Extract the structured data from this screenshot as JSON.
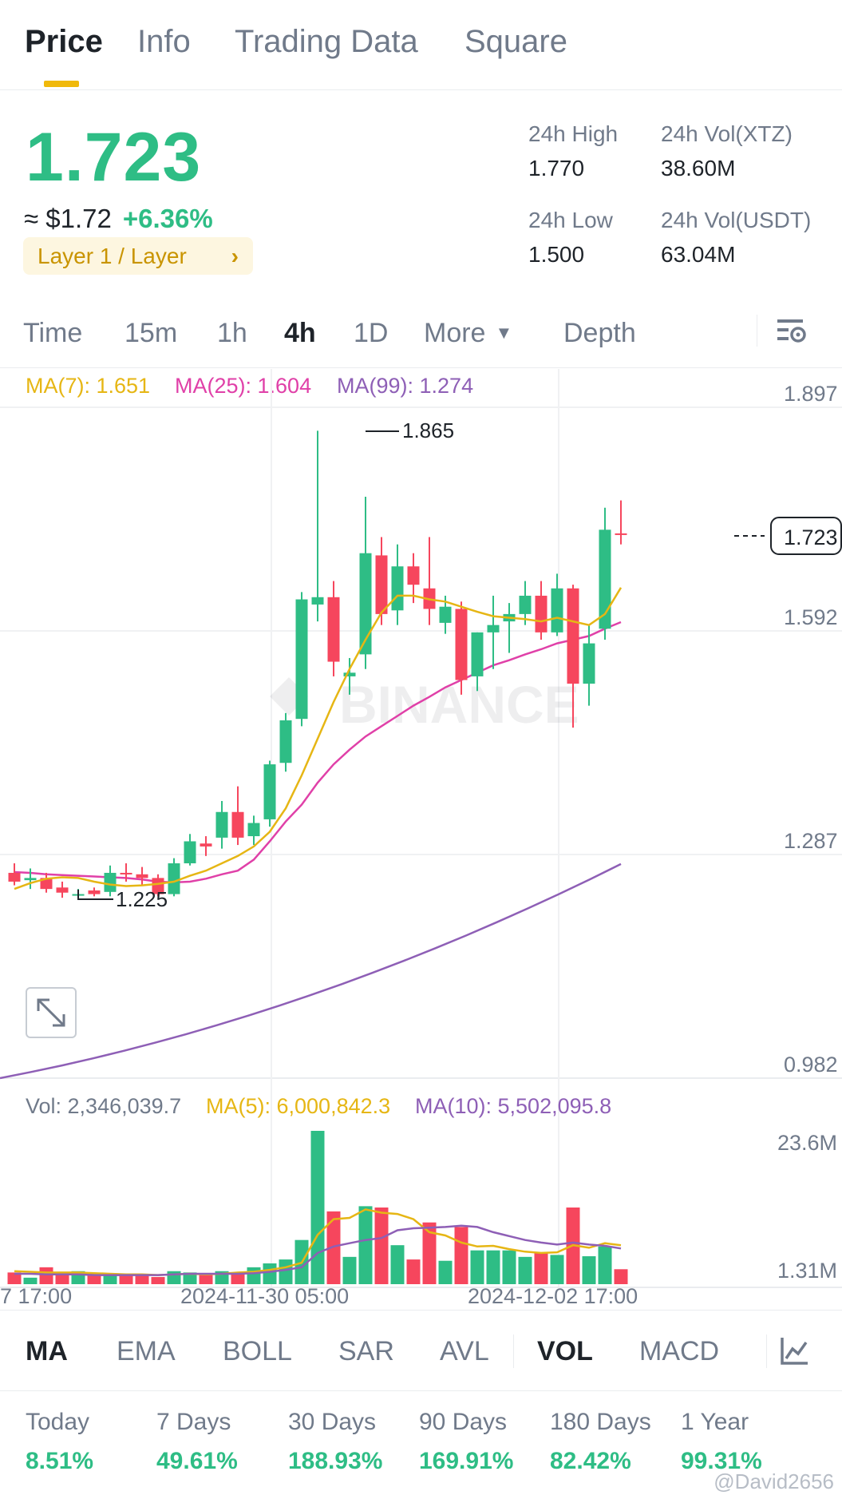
{
  "top_tabs": [
    {
      "label": "Price",
      "active": true
    },
    {
      "label": "Info"
    },
    {
      "label": "Trading Data"
    },
    {
      "label": "Square"
    }
  ],
  "price": {
    "last": "1.723",
    "approx_usd": "≈ $1.72",
    "change": "+6.36%",
    "category": "Layer 1 / Layer"
  },
  "stats": {
    "high_label": "24h High",
    "high_value": "1.770",
    "low_label": "24h Low",
    "low_value": "1.500",
    "vol_base_label": "24h Vol(XTZ)",
    "vol_base_value": "38.60M",
    "vol_quote_label": "24h Vol(USDT)",
    "vol_quote_value": "63.04M"
  },
  "timeframes": [
    "Time",
    "15m",
    "1h",
    "4h",
    "1D",
    "More",
    "Depth"
  ],
  "active_timeframe": "4h",
  "ma_legend": {
    "ma7": "MA(7): 1.651",
    "ma25": "MA(25): 1.604",
    "ma99": "MA(99): 1.274"
  },
  "vol_legend": {
    "vol": "Vol: 2,346,039.7",
    "ma5": "MA(5): 6,000,842.3",
    "ma10": "MA(10): 5,502,095.8"
  },
  "colors": {
    "up": "#2ebd85",
    "down": "#f6465d",
    "accent": "#f0b90b",
    "ma7": "#e6b614",
    "ma25": "#e040a8",
    "ma99": "#8e5fb6"
  },
  "chart_data": {
    "type": "candlestick",
    "price_axis_ticks": [
      "1.897",
      "1.592",
      "1.287",
      "0.982"
    ],
    "current_price_tag": "1.723",
    "high_marker": "1.865",
    "low_marker": "1.225",
    "volume_axis_ticks": [
      "23.6M",
      "1.31M"
    ],
    "x_tick_labels": [
      "7 17:00",
      "2024-11-30 05:00",
      "2024-12-02 17:00"
    ],
    "ylim": [
      0.982,
      1.897
    ],
    "candles": [
      {
        "o": 1.262,
        "h": 1.275,
        "l": 1.245,
        "c": 1.25
      },
      {
        "o": 1.252,
        "h": 1.268,
        "l": 1.24,
        "c": 1.255
      },
      {
        "o": 1.255,
        "h": 1.262,
        "l": 1.235,
        "c": 1.24
      },
      {
        "o": 1.242,
        "h": 1.25,
        "l": 1.228,
        "c": 1.235
      },
      {
        "o": 1.232,
        "h": 1.24,
        "l": 1.225,
        "c": 1.233
      },
      {
        "o": 1.238,
        "h": 1.242,
        "l": 1.23,
        "c": 1.233
      },
      {
        "o": 1.236,
        "h": 1.272,
        "l": 1.23,
        "c": 1.262
      },
      {
        "o": 1.262,
        "h": 1.275,
        "l": 1.25,
        "c": 1.26
      },
      {
        "o": 1.26,
        "h": 1.27,
        "l": 1.245,
        "c": 1.255
      },
      {
        "o": 1.255,
        "h": 1.26,
        "l": 1.23,
        "c": 1.233
      },
      {
        "o": 1.233,
        "h": 1.282,
        "l": 1.23,
        "c": 1.275
      },
      {
        "o": 1.275,
        "h": 1.315,
        "l": 1.272,
        "c": 1.305
      },
      {
        "o": 1.302,
        "h": 1.312,
        "l": 1.285,
        "c": 1.298
      },
      {
        "o": 1.31,
        "h": 1.36,
        "l": 1.295,
        "c": 1.345
      },
      {
        "o": 1.345,
        "h": 1.38,
        "l": 1.3,
        "c": 1.31
      },
      {
        "o": 1.312,
        "h": 1.34,
        "l": 1.3,
        "c": 1.33
      },
      {
        "o": 1.335,
        "h": 1.415,
        "l": 1.325,
        "c": 1.41
      },
      {
        "o": 1.412,
        "h": 1.48,
        "l": 1.4,
        "c": 1.47
      },
      {
        "o": 1.472,
        "h": 1.645,
        "l": 1.462,
        "c": 1.635
      },
      {
        "o": 1.628,
        "h": 1.865,
        "l": 1.605,
        "c": 1.638
      },
      {
        "o": 1.638,
        "h": 1.66,
        "l": 1.53,
        "c": 1.55
      },
      {
        "o": 1.53,
        "h": 1.555,
        "l": 1.505,
        "c": 1.535
      },
      {
        "o": 1.56,
        "h": 1.775,
        "l": 1.54,
        "c": 1.698
      },
      {
        "o": 1.695,
        "h": 1.72,
        "l": 1.6,
        "c": 1.615
      },
      {
        "o": 1.62,
        "h": 1.71,
        "l": 1.6,
        "c": 1.68
      },
      {
        "o": 1.68,
        "h": 1.698,
        "l": 1.63,
        "c": 1.655
      },
      {
        "o": 1.65,
        "h": 1.72,
        "l": 1.6,
        "c": 1.622
      },
      {
        "o": 1.603,
        "h": 1.64,
        "l": 1.588,
        "c": 1.625
      },
      {
        "o": 1.622,
        "h": 1.632,
        "l": 1.505,
        "c": 1.525
      },
      {
        "o": 1.53,
        "h": 1.59,
        "l": 1.51,
        "c": 1.59
      },
      {
        "o": 1.59,
        "h": 1.64,
        "l": 1.54,
        "c": 1.6
      },
      {
        "o": 1.605,
        "h": 1.63,
        "l": 1.562,
        "c": 1.615
      },
      {
        "o": 1.615,
        "h": 1.66,
        "l": 1.6,
        "c": 1.64
      },
      {
        "o": 1.64,
        "h": 1.66,
        "l": 1.58,
        "c": 1.59
      },
      {
        "o": 1.59,
        "h": 1.67,
        "l": 1.585,
        "c": 1.65
      },
      {
        "o": 1.65,
        "h": 1.655,
        "l": 1.46,
        "c": 1.52
      },
      {
        "o": 1.52,
        "h": 1.6,
        "l": 1.49,
        "c": 1.575
      },
      {
        "o": 1.595,
        "h": 1.76,
        "l": 1.58,
        "c": 1.73
      },
      {
        "o": 1.725,
        "h": 1.77,
        "l": 1.71,
        "c": 1.723
      }
    ],
    "ma7": [
      1.24,
      1.248,
      1.254,
      1.256,
      1.255,
      1.25,
      1.246,
      1.244,
      1.245,
      1.247,
      1.25,
      1.258,
      1.265,
      1.275,
      1.285,
      1.298,
      1.318,
      1.35,
      1.395,
      1.445,
      1.495,
      1.54,
      1.58,
      1.617,
      1.64,
      1.64,
      1.635,
      1.632,
      1.625,
      1.618,
      1.612,
      1.61,
      1.608,
      1.605,
      1.61,
      1.605,
      1.6,
      1.615,
      1.651
    ],
    "ma25": [
      1.263,
      1.262,
      1.26,
      1.259,
      1.258,
      1.257,
      1.256,
      1.255,
      1.253,
      1.25,
      1.249,
      1.25,
      1.254,
      1.26,
      1.265,
      1.28,
      1.305,
      1.332,
      1.355,
      1.385,
      1.41,
      1.43,
      1.448,
      1.462,
      1.476,
      1.49,
      1.502,
      1.515,
      1.525,
      1.535,
      1.545,
      1.552,
      1.56,
      1.567,
      1.575,
      1.58,
      1.585,
      1.595,
      1.604
    ],
    "ma99_endpoints": [
      0.982,
      1.274
    ],
    "volumes_m": [
      1.8,
      1.0,
      2.6,
      1.9,
      2.0,
      1.6,
      1.6,
      1.6,
      1.4,
      1.1,
      2.0,
      1.8,
      1.4,
      2.0,
      1.6,
      2.6,
      3.2,
      3.8,
      6.8,
      23.6,
      11.2,
      4.2,
      12.0,
      11.8,
      6.0,
      3.8,
      9.5,
      3.6,
      8.8,
      5.2,
      5.2,
      5.2,
      4.2,
      4.8,
      4.5,
      11.8,
      4.3,
      5.8,
      2.3
    ],
    "vol_ma5_m": [
      2.0,
      1.9,
      1.8,
      1.8,
      1.8,
      1.7,
      1.6,
      1.5,
      1.5,
      1.4,
      1.5,
      1.6,
      1.5,
      1.6,
      1.8,
      1.9,
      2.2,
      2.6,
      3.3,
      7.6,
      10.0,
      10.2,
      11.5,
      11.0,
      10.8,
      10.0,
      8.0,
      7.5,
      6.4,
      5.8,
      5.9,
      5.4,
      5.0,
      4.8,
      4.9,
      6.0,
      5.6,
      6.3,
      6.0
    ],
    "vol_ma10_m": [
      1.6,
      1.6,
      1.5,
      1.5,
      1.5,
      1.4,
      1.4,
      1.4,
      1.4,
      1.4,
      1.5,
      1.6,
      1.6,
      1.6,
      1.6,
      1.7,
      1.9,
      2.2,
      2.6,
      4.8,
      5.8,
      6.3,
      6.8,
      7.1,
      8.3,
      8.6,
      8.7,
      8.8,
      9.0,
      8.8,
      8.0,
      7.4,
      6.8,
      6.4,
      6.1,
      6.4,
      6.1,
      5.9,
      5.5
    ]
  },
  "indicators": [
    "MA",
    "EMA",
    "BOLL",
    "SAR",
    "AVL",
    "VOL",
    "MACD"
  ],
  "active_indicators": [
    "MA",
    "VOL"
  ],
  "performance": [
    {
      "label": "Today",
      "value": "8.51%"
    },
    {
      "label": "7 Days",
      "value": "49.61%"
    },
    {
      "label": "30 Days",
      "value": "188.93%"
    },
    {
      "label": "90 Days",
      "value": "169.91%"
    },
    {
      "label": "180 Days",
      "value": "82.42%"
    },
    {
      "label": "1 Year",
      "value": "99.31%"
    }
  ],
  "watermark": "BINANCE",
  "credit": "@David2656"
}
